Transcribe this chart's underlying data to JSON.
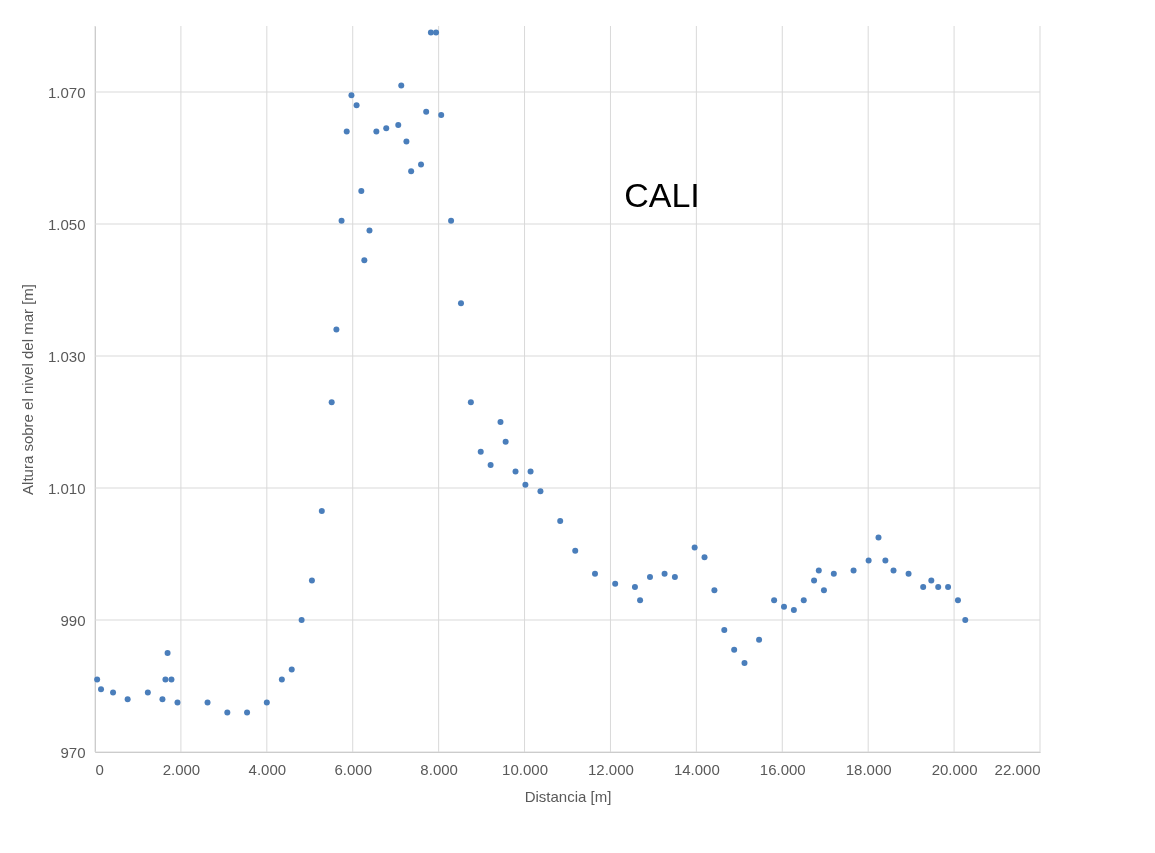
{
  "chart_data": {
    "type": "scatter",
    "xlabel": "Distancia [m]",
    "ylabel": "Altura sobre el nivel del mar [m]",
    "annotations": [
      "CALI"
    ],
    "xlim": [
      0,
      22000
    ],
    "xticks": [
      0,
      {
        "value": 2000,
        "label": "2.000"
      },
      {
        "value": 4000,
        "label": "4.000"
      },
      {
        "value": 6000,
        "label": "6.000"
      },
      {
        "value": 8000,
        "label": "8.000"
      },
      {
        "value": 10000,
        "label": "10.000"
      },
      {
        "value": 12000,
        "label": "12.000"
      },
      {
        "value": 14000,
        "label": "14.000"
      },
      {
        "value": 16000,
        "label": "16.000"
      },
      {
        "value": 18000,
        "label": "18.000"
      },
      {
        "value": 20000,
        "label": "20.000"
      },
      {
        "value": 22000,
        "label": "22.000"
      }
    ],
    "ylim": [
      970,
      1080
    ],
    "yticks": [
      970,
      990,
      {
        "value": 1010,
        "label": "1.010"
      },
      {
        "value": 1030,
        "label": "1.030"
      },
      {
        "value": 1050,
        "label": "1.050"
      },
      {
        "value": 1070,
        "label": "1.070"
      }
    ],
    "grid": true,
    "marker": "circle",
    "series": [
      {
        "color": "#4a7ebb",
        "x": [
          50,
          140,
          420,
          760,
          1230,
          1570,
          1640,
          1690,
          1780,
          1920,
          2620,
          3080,
          3540,
          4000,
          4350,
          4580,
          4810,
          5050,
          5280,
          5510,
          5620,
          5740,
          5860,
          5970,
          6090,
          6200,
          6270,
          6390,
          6550,
          6780,
          7060,
          7130,
          7250,
          7360,
          7590,
          7710,
          7820,
          7940,
          8060,
          8290,
          8520,
          8750,
          8980,
          9210,
          9440,
          9560,
          9790,
          10020,
          10140,
          10370,
          10830,
          11180,
          11640,
          12110,
          12570,
          12690,
          12920,
          13260,
          13500,
          13960,
          14190,
          14420,
          14650,
          14880,
          15120,
          15460,
          15810,
          16040,
          16270,
          16500,
          16740,
          16850,
          16970,
          17200,
          17660,
          18010,
          18240,
          18400,
          18590,
          18940,
          19280,
          19470,
          19630,
          19860,
          20090,
          20260
        ],
        "values": [
          981,
          979.5,
          979,
          978,
          979,
          978,
          981,
          985,
          981,
          977.5,
          977.5,
          976,
          976,
          977.5,
          981,
          982.5,
          990,
          996,
          1006.5,
          1023,
          1034,
          1050.5,
          1064,
          1069.5,
          1068,
          1055,
          1044.5,
          1049,
          1064,
          1064.5,
          1065,
          1071,
          1062.5,
          1058,
          1059,
          1067,
          1079,
          1079,
          1066.5,
          1050.5,
          1038,
          1023,
          1015.5,
          1013.5,
          1020,
          1017,
          1012.5,
          1010.5,
          1012.5,
          1009.5,
          1005,
          1000.5,
          997,
          995.5,
          995,
          993,
          996.5,
          997,
          996.5,
          1001,
          999.5,
          994.5,
          988.5,
          985.5,
          983.5,
          987,
          993,
          992,
          991.5,
          993,
          996,
          997.5,
          994.5,
          997,
          997.5,
          999,
          1002.5,
          999,
          997.5,
          997,
          995,
          996,
          995,
          995,
          993,
          990
        ]
      }
    ]
  }
}
